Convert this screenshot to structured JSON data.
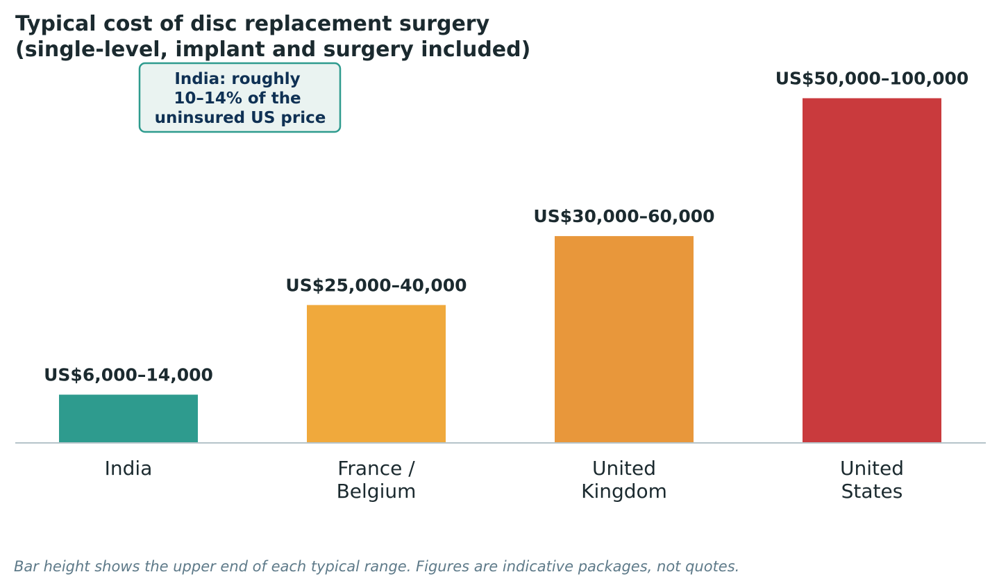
{
  "chart_data": {
    "type": "bar",
    "title": [
      "Typical cost of disc replacement surgery",
      "(single-level, implant and surgery included)"
    ],
    "categories": [
      [
        "India"
      ],
      [
        "France /",
        "Belgium"
      ],
      [
        "United",
        "Kingdom"
      ],
      [
        "United",
        "States"
      ]
    ],
    "ranges": [
      [
        6000,
        14000
      ],
      [
        25000,
        40000
      ],
      [
        30000,
        60000
      ],
      [
        50000,
        100000
      ]
    ],
    "values": [
      14000,
      40000,
      60000,
      100000
    ],
    "value_labels": [
      "US$6,000–14,000",
      "US$25,000–40,000",
      "US$30,000–60,000",
      "US$50,000–100,000"
    ],
    "colors": [
      "#2e9b8e",
      "#f0a93c",
      "#e8973b",
      "#c93a3d"
    ],
    "ylim": [
      0,
      115000
    ],
    "grid": false,
    "annotation": {
      "lines": [
        "India: roughly",
        "10–14% of the",
        "uninsured US price"
      ],
      "border_color": "#2e9b8e",
      "background_color": "#eaf3f1",
      "text_color": "#0f3154"
    },
    "footnote": "Bar height shows the upper end of each typical range. Figures are indicative packages, not quotes."
  }
}
